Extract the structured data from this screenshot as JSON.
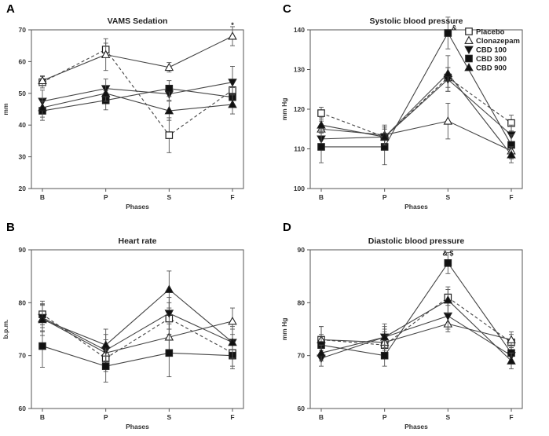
{
  "chart_data": [
    {
      "panel": "A",
      "type": "line",
      "title": "VAMS Sedation",
      "xlabel": "Phases",
      "ylabel": "mm",
      "categories": [
        "B",
        "P",
        "S",
        "F"
      ],
      "ylim": [
        20,
        70
      ],
      "yticks": [
        20,
        30,
        40,
        50,
        60,
        70
      ],
      "annotations": [
        {
          "text": "*",
          "category": "F",
          "y": 70.3
        }
      ],
      "series": [
        {
          "name": "Placebo",
          "values": [
            53.5,
            63.8,
            36.8,
            51.0
          ],
          "errors": [
            1.8,
            2.0,
            5.5,
            2.5
          ]
        },
        {
          "name": "Clonazepam",
          "values": [
            54.0,
            62.2,
            58.2,
            68.0
          ],
          "errors": [
            1.5,
            5.0,
            1.5,
            3.0
          ]
        },
        {
          "name": "CBD 100",
          "values": [
            47.5,
            51.5,
            49.8,
            53.5
          ],
          "errors": [
            3.5,
            3.0,
            2.0,
            5.0
          ]
        },
        {
          "name": "CBD 300",
          "values": [
            44.5,
            47.8,
            51.5,
            48.8
          ],
          "errors": [
            3.0,
            3.0,
            2.5,
            3.0
          ]
        },
        {
          "name": "CBD 900",
          "values": [
            45.5,
            50.0,
            44.5,
            46.5
          ],
          "errors": [
            3.0,
            2.5,
            3.0,
            3.0
          ]
        }
      ]
    },
    {
      "panel": "C",
      "type": "line",
      "title": "Systolic blood pressure",
      "xlabel": "Phases",
      "ylabel": "mm Hg",
      "categories": [
        "B",
        "P",
        "S",
        "F"
      ],
      "ylim": [
        100,
        140
      ],
      "yticks": [
        100,
        110,
        120,
        130,
        140
      ],
      "annotations": [
        {
          "text": "&",
          "category": "S",
          "y": 139.5
        }
      ],
      "series": [
        {
          "name": "Placebo",
          "values": [
            119.0,
            113.0,
            128.0,
            116.5
          ],
          "errors": [
            1.5,
            2.5,
            2.5,
            2.0
          ]
        },
        {
          "name": "Clonazepam",
          "values": [
            115.0,
            113.5,
            117.0,
            109.5
          ],
          "errors": [
            2.0,
            2.5,
            4.5,
            2.0
          ]
        },
        {
          "name": "CBD 100",
          "values": [
            112.5,
            113.0,
            127.5,
            113.5
          ],
          "errors": [
            2.5,
            2.5,
            3.0,
            2.5
          ]
        },
        {
          "name": "CBD 300",
          "values": [
            110.5,
            110.5,
            139.2,
            111.0
          ],
          "errors": [
            4.0,
            4.5,
            4.0,
            2.5
          ]
        },
        {
          "name": "CBD 900",
          "values": [
            116.0,
            113.0,
            129.0,
            108.5
          ],
          "errors": [
            2.0,
            2.0,
            4.5,
            2.0
          ]
        }
      ]
    },
    {
      "panel": "B",
      "type": "line",
      "title": "Heart rate",
      "xlabel": "Phases",
      "ylabel": "b.p.m.",
      "categories": [
        "B",
        "P",
        "S",
        "F"
      ],
      "ylim": [
        60,
        90
      ],
      "yticks": [
        60,
        70,
        80,
        90
      ],
      "annotations": [],
      "series": [
        {
          "name": "Placebo",
          "values": [
            77.8,
            69.5,
            77.0,
            70.5
          ],
          "errors": [
            2.5,
            2.5,
            3.0,
            2.5
          ]
        },
        {
          "name": "Clonazepam",
          "values": [
            77.0,
            70.5,
            73.5,
            76.5
          ],
          "errors": [
            2.5,
            2.5,
            2.5,
            2.5
          ]
        },
        {
          "name": "CBD 100",
          "values": [
            77.2,
            71.0,
            78.0,
            72.5
          ],
          "errors": [
            2.5,
            3.0,
            3.0,
            2.5
          ]
        },
        {
          "name": "CBD 300",
          "values": [
            71.8,
            68.0,
            70.5,
            70.0
          ],
          "errors": [
            4.0,
            3.0,
            4.5,
            2.5
          ]
        },
        {
          "name": "CBD 900",
          "values": [
            76.8,
            72.0,
            82.5,
            72.5
          ],
          "errors": [
            3.0,
            3.0,
            3.5,
            3.0
          ]
        }
      ]
    },
    {
      "panel": "D",
      "type": "line",
      "title": "Diastolic blood pressure",
      "xlabel": "Phases",
      "ylabel": "mm Hg",
      "categories": [
        "B",
        "P",
        "S",
        "F"
      ],
      "ylim": [
        60,
        90
      ],
      "yticks": [
        60,
        70,
        80,
        90
      ],
      "annotations": [
        {
          "text": "& $",
          "category": "S",
          "y": 88.6
        }
      ],
      "series": [
        {
          "name": "Placebo",
          "values": [
            73.0,
            72.0,
            81.0,
            72.5
          ],
          "errors": [
            2.5,
            2.5,
            1.5,
            1.5
          ]
        },
        {
          "name": "Clonazepam",
          "values": [
            73.0,
            72.5,
            76.0,
            73.0
          ],
          "errors": [
            2.5,
            2.5,
            1.5,
            1.5
          ]
        },
        {
          "name": "CBD 100",
          "values": [
            69.5,
            73.5,
            77.5,
            70.0
          ],
          "errors": [
            1.5,
            2.5,
            2.5,
            1.5
          ]
        },
        {
          "name": "CBD 300",
          "values": [
            72.0,
            70.0,
            87.5,
            70.5
          ],
          "errors": [
            2.0,
            2.0,
            2.0,
            1.5
          ]
        },
        {
          "name": "CBD 900",
          "values": [
            70.5,
            73.5,
            80.5,
            69.0
          ],
          "errors": [
            1.5,
            2.0,
            2.5,
            1.5
          ]
        }
      ]
    }
  ],
  "legend": {
    "items": [
      "Placebo",
      "Clonazepam",
      "CBD 100",
      "CBD 300",
      "CBD 900"
    ]
  },
  "styles": {
    "Placebo": {
      "marker": "square-open",
      "dash": "4,3"
    },
    "Clonazepam": {
      "marker": "triangle-open",
      "dash": ""
    },
    "CBD 100": {
      "marker": "triangle-down-filled",
      "dash": ""
    },
    "CBD 300": {
      "marker": "square-filled",
      "dash": ""
    },
    "CBD 900": {
      "marker": "triangle-filled",
      "dash": ""
    }
  },
  "colors": {
    "ink": "#333333",
    "frame": "#555555",
    "series_line": "#444444"
  }
}
